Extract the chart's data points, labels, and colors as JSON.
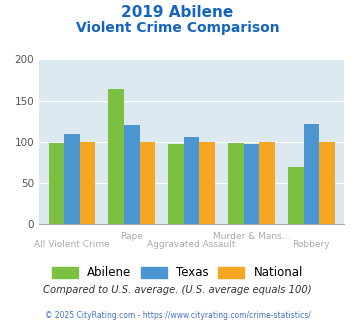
{
  "title_line1": "2019 Abilene",
  "title_line2": "Violent Crime Comparison",
  "categories": [
    "All Violent Crime",
    "Rape",
    "Aggravated Assault",
    "Murder & Mans...",
    "Robbery"
  ],
  "abilene": [
    99,
    164,
    97,
    99,
    69
  ],
  "texas": [
    110,
    120,
    106,
    98,
    122
  ],
  "national": [
    100,
    100,
    100,
    100,
    100
  ],
  "color_abilene": "#7dc142",
  "color_texas": "#4b96d1",
  "color_national": "#f5a623",
  "ylim": [
    0,
    200
  ],
  "yticks": [
    0,
    50,
    100,
    150,
    200
  ],
  "bg_color": "#dce9f0",
  "title_color": "#1565c0",
  "xlabel_color": "#aaaaaa",
  "note_text": "Compared to U.S. average. (U.S. average equals 100)",
  "note_color": "#333333",
  "footer_text": "© 2025 CityRating.com - https://www.cityrating.com/crime-statistics/",
  "footer_color": "#4472c4",
  "legend_labels": [
    "Abilene",
    "Texas",
    "National"
  ],
  "row_upper": [
    1,
    3
  ],
  "row_lower": [
    0,
    2,
    4
  ]
}
